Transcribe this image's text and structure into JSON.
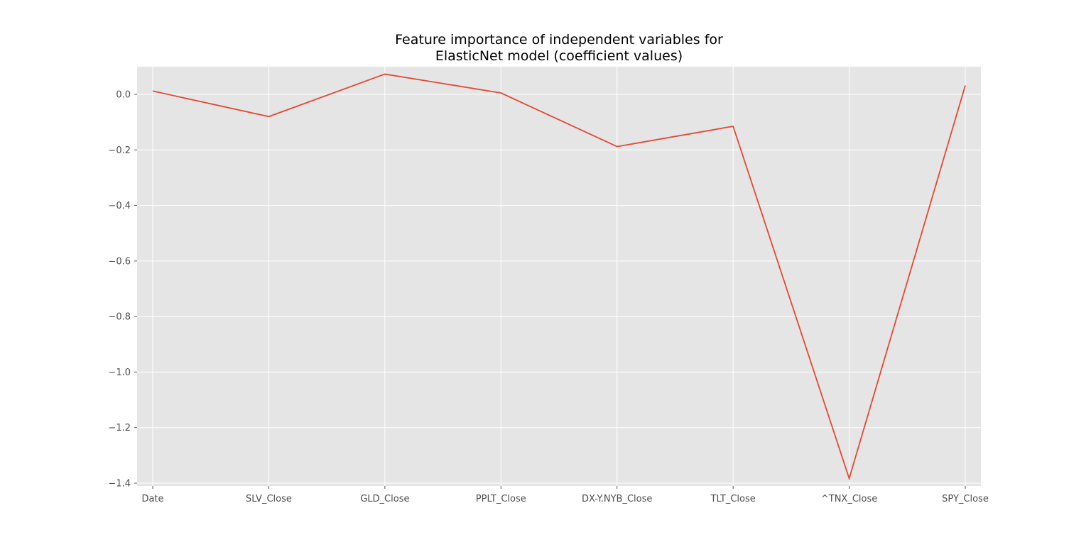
{
  "chart_data": {
    "type": "line",
    "title_lines": [
      "Feature importance of independent variables for",
      "ElasticNet model (coefficient values)"
    ],
    "xlabel": "",
    "ylabel": "",
    "categories": [
      "Date",
      "SLV_Close",
      "GLD_Close",
      "PPLT_Close",
      "DX-Y.NYB_Close",
      "TLT_Close",
      "^TNX_Close",
      "SPY_Close"
    ],
    "series": [
      {
        "values": [
          0.012,
          -0.08,
          0.073,
          0.005,
          -0.188,
          -0.115,
          -1.383,
          0.032
        ],
        "color": "#e24a33"
      }
    ],
    "ylim": [
      -1.4,
      0.1
    ],
    "yticks": [
      0.0,
      -0.2,
      -0.4,
      -0.6,
      -0.8,
      -1.0,
      -1.2,
      -1.4
    ],
    "ytick_labels": [
      "0.0",
      "−0.2",
      "−0.4",
      "−0.6",
      "−0.8",
      "−1.0",
      "−1.2",
      "−1.4"
    ],
    "grid": true,
    "style": "ggplot",
    "colors": {
      "plot_background": "#e5e5e5",
      "grid": "#ffffff",
      "tick_text": "#4d4d4d",
      "title_text": "#000000"
    }
  }
}
